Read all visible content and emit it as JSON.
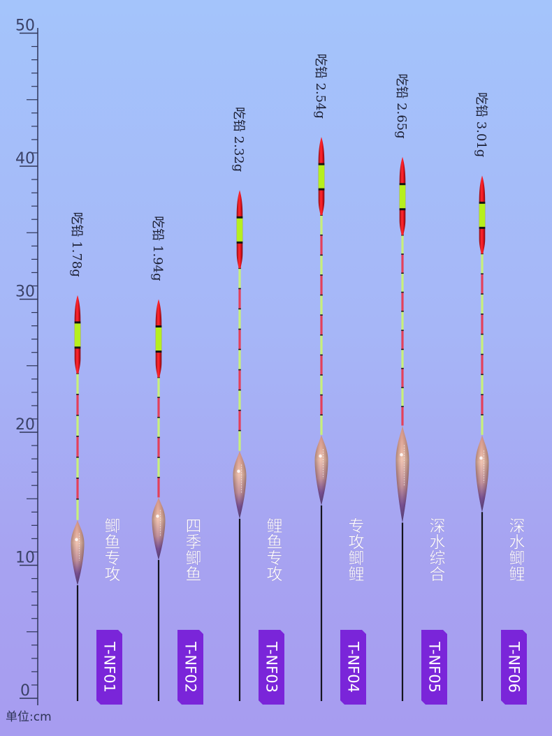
{
  "scale": {
    "unit_label": "单位:cm",
    "major_labels": [
      "0",
      "10",
      "20",
      "30",
      "40",
      "50"
    ],
    "min_cm": 0,
    "max_cm": 50,
    "minor_step_cm": 1
  },
  "floats": [
    {
      "model": "T-NF01",
      "name": "鲫鱼专攻",
      "lead_text": "吃铅 1.78g",
      "top_cm": 30.3,
      "body_top_cm": 13.4,
      "body_bottom_cm": 8.5
    },
    {
      "model": "T-NF02",
      "name": "四季鲫鱼",
      "lead_text": "吃铅 1.94g",
      "top_cm": 30.0,
      "body_top_cm": 15.1,
      "body_bottom_cm": 10.4
    },
    {
      "model": "T-NF03",
      "name": "鲤鱼专攻",
      "lead_text": "吃铅 2.32g",
      "top_cm": 38.2,
      "body_top_cm": 18.6,
      "body_bottom_cm": 13.5
    },
    {
      "model": "T-NF04",
      "name": "专攻鲫鲤",
      "lead_text": "吃铅 2.54g",
      "top_cm": 42.2,
      "body_top_cm": 19.8,
      "body_bottom_cm": 14.5
    },
    {
      "model": "T-NF05",
      "name": "深水综合",
      "lead_text": "吃铅 2.65g",
      "top_cm": 40.7,
      "body_top_cm": 20.5,
      "body_bottom_cm": 13.2
    },
    {
      "model": "T-NF06",
      "name": "深水鲫鲤",
      "lead_text": "吃铅 3.01g",
      "top_cm": 39.3,
      "body_top_cm": 19.8,
      "body_bottom_cm": 14.0
    }
  ],
  "colors": {
    "tip_red": "#e5121d",
    "tip_green": "#b6ef1e",
    "stem_green": "#c8f07a",
    "stem_red": "#e4405a",
    "body_copper": "#e8a48c",
    "body_purple": "#3b1c6b",
    "badge_purple": "#7a25d9"
  }
}
